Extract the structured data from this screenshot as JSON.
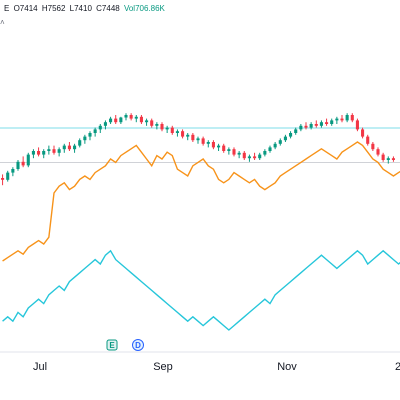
{
  "legend": {
    "symbol_suffix": "E",
    "open": "O7414",
    "high": "H7562",
    "low": "L7410",
    "close": "C7448",
    "volume": "Vol706.86K",
    "collapse_glyph": "˄"
  },
  "event_badges": [
    {
      "label": "E",
      "icon": "earnings-badge-icon"
    },
    {
      "label": "D",
      "icon": "dividend-badge-icon"
    }
  ],
  "colors": {
    "up": "#089981",
    "down": "#f23645",
    "series_orange": "#f7931a",
    "series_cyan": "#26c6da",
    "level_line": "#26c6da",
    "price_axis_line": "#b2b5be"
  },
  "chart_data": {
    "type": "line",
    "x_tick_labels": [
      "Jul",
      "Sep",
      "Nov",
      "2"
    ],
    "candles": [
      {
        "o": 100,
        "h": 101,
        "l": 98,
        "c": 99.5
      },
      {
        "o": 99.5,
        "h": 102,
        "l": 99,
        "c": 101.5
      },
      {
        "o": 101.5,
        "h": 103,
        "l": 100.5,
        "c": 102.5
      },
      {
        "o": 102.5,
        "h": 105,
        "l": 102,
        "c": 104.5
      },
      {
        "o": 104.5,
        "h": 106,
        "l": 103,
        "c": 103.5
      },
      {
        "o": 103.5,
        "h": 107,
        "l": 103,
        "c": 106.5
      },
      {
        "o": 106.5,
        "h": 108,
        "l": 105.5,
        "c": 107.5
      },
      {
        "o": 107.5,
        "h": 108.5,
        "l": 106,
        "c": 106.5
      },
      {
        "o": 106.5,
        "h": 108,
        "l": 105.5,
        "c": 107.5
      },
      {
        "o": 107.5,
        "h": 109,
        "l": 106.5,
        "c": 108
      },
      {
        "o": 108,
        "h": 109,
        "l": 106.5,
        "c": 107
      },
      {
        "o": 107,
        "h": 108.5,
        "l": 106,
        "c": 108
      },
      {
        "o": 108,
        "h": 109.5,
        "l": 107,
        "c": 109
      },
      {
        "o": 109,
        "h": 110,
        "l": 107.5,
        "c": 108
      },
      {
        "o": 108,
        "h": 109.5,
        "l": 107,
        "c": 109
      },
      {
        "o": 109,
        "h": 111,
        "l": 108.5,
        "c": 110.5
      },
      {
        "o": 110.5,
        "h": 112,
        "l": 109.5,
        "c": 111.5
      },
      {
        "o": 111.5,
        "h": 113,
        "l": 110.5,
        "c": 112.5
      },
      {
        "o": 112.5,
        "h": 114,
        "l": 111.5,
        "c": 113.5
      },
      {
        "o": 113.5,
        "h": 115,
        "l": 112.5,
        "c": 114.5
      },
      {
        "o": 114.5,
        "h": 116,
        "l": 113.5,
        "c": 115.5
      },
      {
        "o": 115.5,
        "h": 117,
        "l": 115,
        "c": 116.5
      },
      {
        "o": 116.5,
        "h": 117.5,
        "l": 115,
        "c": 115.5
      },
      {
        "o": 115.5,
        "h": 117,
        "l": 115,
        "c": 116.8
      },
      {
        "o": 116.8,
        "h": 118,
        "l": 116,
        "c": 117.5
      },
      {
        "o": 117.5,
        "h": 118,
        "l": 116,
        "c": 116.5
      },
      {
        "o": 116.5,
        "h": 117.5,
        "l": 115.5,
        "c": 117
      },
      {
        "o": 117,
        "h": 117.5,
        "l": 115,
        "c": 115.5
      },
      {
        "o": 115.5,
        "h": 116.5,
        "l": 114.5,
        "c": 116
      },
      {
        "o": 116,
        "h": 116.5,
        "l": 114,
        "c": 114.5
      },
      {
        "o": 114.5,
        "h": 115.5,
        "l": 113.5,
        "c": 115
      },
      {
        "o": 115,
        "h": 115.5,
        "l": 113,
        "c": 113.5
      },
      {
        "o": 113.5,
        "h": 114.5,
        "l": 112.5,
        "c": 114
      },
      {
        "o": 114,
        "h": 114.5,
        "l": 112,
        "c": 112.5
      },
      {
        "o": 112.5,
        "h": 113.5,
        "l": 111.5,
        "c": 113
      },
      {
        "o": 113,
        "h": 113.5,
        "l": 111,
        "c": 111.5
      },
      {
        "o": 111.5,
        "h": 112.5,
        "l": 110.5,
        "c": 112
      },
      {
        "o": 112,
        "h": 112.5,
        "l": 110,
        "c": 110.5
      },
      {
        "o": 110.5,
        "h": 111.5,
        "l": 109.5,
        "c": 111
      },
      {
        "o": 111,
        "h": 111.5,
        "l": 109,
        "c": 109.5
      },
      {
        "o": 109.5,
        "h": 110.5,
        "l": 108.5,
        "c": 110
      },
      {
        "o": 110,
        "h": 110.5,
        "l": 108,
        "c": 108.5
      },
      {
        "o": 108.5,
        "h": 109.5,
        "l": 107.5,
        "c": 109
      },
      {
        "o": 109,
        "h": 109.5,
        "l": 107,
        "c": 107.5
      },
      {
        "o": 107.5,
        "h": 108.5,
        "l": 106.5,
        "c": 108
      },
      {
        "o": 108,
        "h": 108.5,
        "l": 106,
        "c": 106.5
      },
      {
        "o": 106.5,
        "h": 107.5,
        "l": 105.5,
        "c": 107
      },
      {
        "o": 107,
        "h": 107.5,
        "l": 105,
        "c": 105.5
      },
      {
        "o": 105.5,
        "h": 106.5,
        "l": 104.5,
        "c": 106
      },
      {
        "o": 106,
        "h": 107,
        "l": 105,
        "c": 105.5
      },
      {
        "o": 105.5,
        "h": 107,
        "l": 105,
        "c": 106.5
      },
      {
        "o": 106.5,
        "h": 108,
        "l": 106,
        "c": 107.5
      },
      {
        "o": 107.5,
        "h": 109,
        "l": 107,
        "c": 108.5
      },
      {
        "o": 108.5,
        "h": 110,
        "l": 108,
        "c": 109.5
      },
      {
        "o": 109.5,
        "h": 111,
        "l": 109,
        "c": 110.5
      },
      {
        "o": 110.5,
        "h": 112,
        "l": 110,
        "c": 111.5
      },
      {
        "o": 111.5,
        "h": 113,
        "l": 111,
        "c": 112.5
      },
      {
        "o": 112.5,
        "h": 114,
        "l": 112,
        "c": 113.5
      },
      {
        "o": 113.5,
        "h": 115,
        "l": 113,
        "c": 114.5
      },
      {
        "o": 114.5,
        "h": 115.5,
        "l": 113.5,
        "c": 114
      },
      {
        "o": 114,
        "h": 115.5,
        "l": 113.5,
        "c": 115
      },
      {
        "o": 115,
        "h": 116,
        "l": 114,
        "c": 114.5
      },
      {
        "o": 114.5,
        "h": 116,
        "l": 114,
        "c": 115.5
      },
      {
        "o": 115.5,
        "h": 116.5,
        "l": 114.5,
        "c": 115
      },
      {
        "o": 115,
        "h": 116.5,
        "l": 114.5,
        "c": 116
      },
      {
        "o": 116,
        "h": 117,
        "l": 115,
        "c": 116.5
      },
      {
        "o": 116.5,
        "h": 117.5,
        "l": 115.5,
        "c": 116
      },
      {
        "o": 116,
        "h": 118,
        "l": 115.5,
        "c": 117.5
      },
      {
        "o": 117.5,
        "h": 118,
        "l": 115.5,
        "c": 116
      },
      {
        "o": 116,
        "h": 116.5,
        "l": 113,
        "c": 113.5
      },
      {
        "o": 113.5,
        "h": 114,
        "l": 111,
        "c": 111.5
      },
      {
        "o": 111.5,
        "h": 112,
        "l": 109,
        "c": 109.5
      },
      {
        "o": 109.5,
        "h": 110,
        "l": 107.5,
        "c": 108
      },
      {
        "o": 108,
        "h": 108.5,
        "l": 106,
        "c": 106.5
      },
      {
        "o": 106.5,
        "h": 107,
        "l": 104.5,
        "c": 105
      },
      {
        "o": 105,
        "h": 106,
        "l": 104,
        "c": 105.5
      },
      {
        "o": 105.5,
        "h": 106,
        "l": 104.5,
        "c": 105
      }
    ],
    "series": [
      {
        "values": [
          60,
          61,
          62,
          63,
          62,
          64,
          65,
          66,
          65,
          67,
          80,
          82,
          83,
          81,
          82,
          84,
          85,
          84,
          86,
          87,
          88,
          90,
          89,
          91,
          92,
          93,
          94,
          92,
          90,
          88,
          91,
          90,
          92,
          91,
          87,
          86,
          85,
          88,
          89,
          90,
          88,
          87,
          84,
          83,
          84,
          86,
          85,
          84,
          83,
          84,
          82,
          81,
          82,
          83,
          85,
          86,
          87,
          88,
          89,
          90,
          91,
          92,
          93,
          92,
          91,
          90,
          92,
          93,
          94,
          95,
          94,
          92,
          90,
          89,
          87,
          86,
          85,
          86,
          87,
          86
        ]
      },
      {
        "values": [
          40,
          41,
          40,
          42,
          41,
          43,
          44,
          45,
          44,
          46,
          47,
          48,
          47,
          49,
          50,
          51,
          52,
          53,
          54,
          53,
          55,
          56,
          54,
          53,
          52,
          51,
          50,
          49,
          48,
          47,
          46,
          45,
          44,
          43,
          42,
          41,
          40,
          41,
          40,
          39,
          40,
          41,
          40,
          39,
          38,
          39,
          40,
          41,
          42,
          43,
          44,
          45,
          44,
          46,
          47,
          48,
          49,
          50,
          51,
          52,
          53,
          54,
          55,
          54,
          53,
          52,
          53,
          54,
          55,
          56,
          55,
          53,
          54,
          55,
          56,
          55,
          54,
          53,
          54,
          55
        ]
      }
    ],
    "level_lines": [
      113.9,
      104.3
    ],
    "grid": false
  }
}
